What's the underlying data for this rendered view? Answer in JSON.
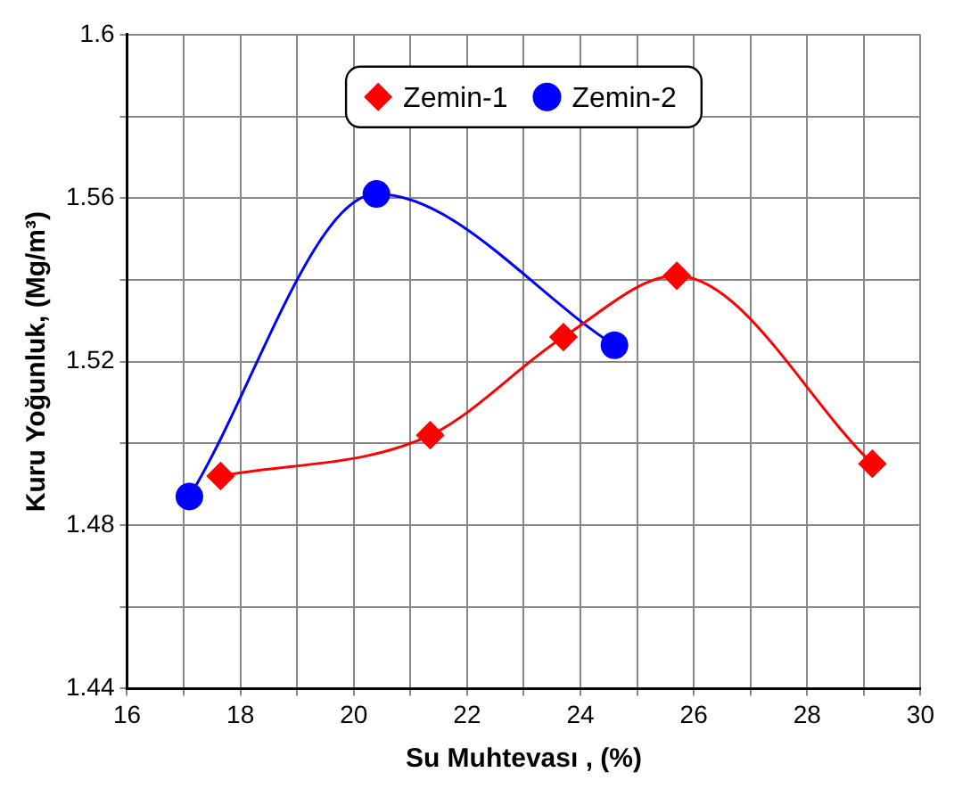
{
  "chart_data": {
    "type": "line",
    "xlabel": "Su Muhtevası , (%)",
    "ylabel": "Kuru Yoğunluk, (Mg/m³)",
    "xlim": [
      16,
      30
    ],
    "ylim": [
      1.44,
      1.6
    ],
    "xticks": [
      16,
      {
        "value": 17,
        "label": null
      },
      18,
      {
        "value": 19,
        "label": null
      },
      20,
      {
        "value": 21,
        "label": null
      },
      22,
      {
        "value": 23,
        "label": null
      },
      24,
      {
        "value": 25,
        "label": null
      },
      26,
      {
        "value": 27,
        "label": null
      },
      28,
      {
        "value": 29,
        "label": null
      },
      30
    ],
    "yticks": [
      1.44,
      {
        "value": 1.46,
        "label": null
      },
      1.48,
      {
        "value": 1.5,
        "label": null
      },
      1.52,
      {
        "value": 1.54,
        "label": null
      },
      1.56,
      {
        "value": 1.58,
        "label": null
      },
      1.6
    ],
    "grid": true,
    "legend": "top",
    "series": [
      {
        "name": "Zemin-1",
        "color": "#ff0000",
        "marker": "diamond",
        "x": [
          17.65,
          21.35,
          23.7,
          25.7,
          29.15
        ],
        "values": [
          1.492,
          1.502,
          1.526,
          1.541,
          1.495
        ]
      },
      {
        "name": "Zemin-2",
        "color": "#0000ff",
        "marker": "circle",
        "x": [
          17.1,
          20.4,
          24.6
        ],
        "values": [
          1.487,
          1.561,
          1.524
        ]
      }
    ]
  }
}
